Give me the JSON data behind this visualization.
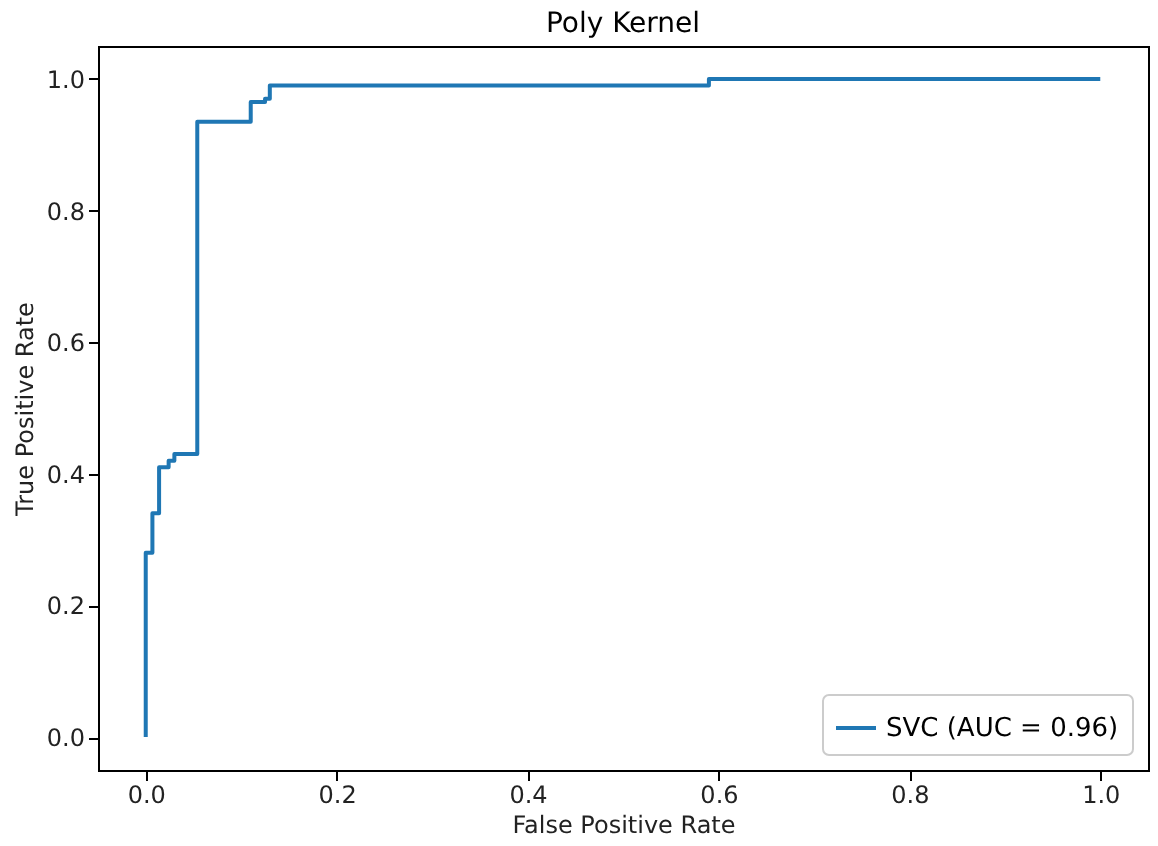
{
  "chart_data": {
    "type": "line",
    "title": "Poly Kernel",
    "xlabel": "False Positive Rate",
    "ylabel": "True Positive Rate",
    "x": [
      0,
      0,
      0.007,
      0.007,
      0.014,
      0.014,
      0.024,
      0.024,
      0.03,
      0.03,
      0.054,
      0.054,
      0.11,
      0.11,
      0.125,
      0.125,
      0.13,
      0.13,
      0.59,
      0.59,
      1.0
    ],
    "series": [
      {
        "name": "SVC (AUC = 0.96)",
        "color": "#1f77b4",
        "values": [
          0,
          0.28,
          0.28,
          0.34,
          0.34,
          0.41,
          0.41,
          0.42,
          0.42,
          0.43,
          0.43,
          0.935,
          0.935,
          0.965,
          0.965,
          0.97,
          0.97,
          0.99,
          0.99,
          1.0,
          1.0
        ]
      }
    ],
    "xlim": [
      -0.05,
      1.05
    ],
    "ylim": [
      -0.05,
      1.05
    ],
    "xticks": [
      {
        "value": 0,
        "label": "0.0"
      },
      0.2,
      0.4,
      0.6,
      0.8,
      {
        "value": 1,
        "label": "1.0"
      }
    ],
    "yticks": [
      {
        "value": 0,
        "label": "0.0"
      },
      0.2,
      0.4,
      0.6,
      0.8,
      {
        "value": 1,
        "label": "1.0"
      }
    ],
    "grid": false,
    "legend": "bottom right",
    "line_style": "solid",
    "marker": "none"
  }
}
